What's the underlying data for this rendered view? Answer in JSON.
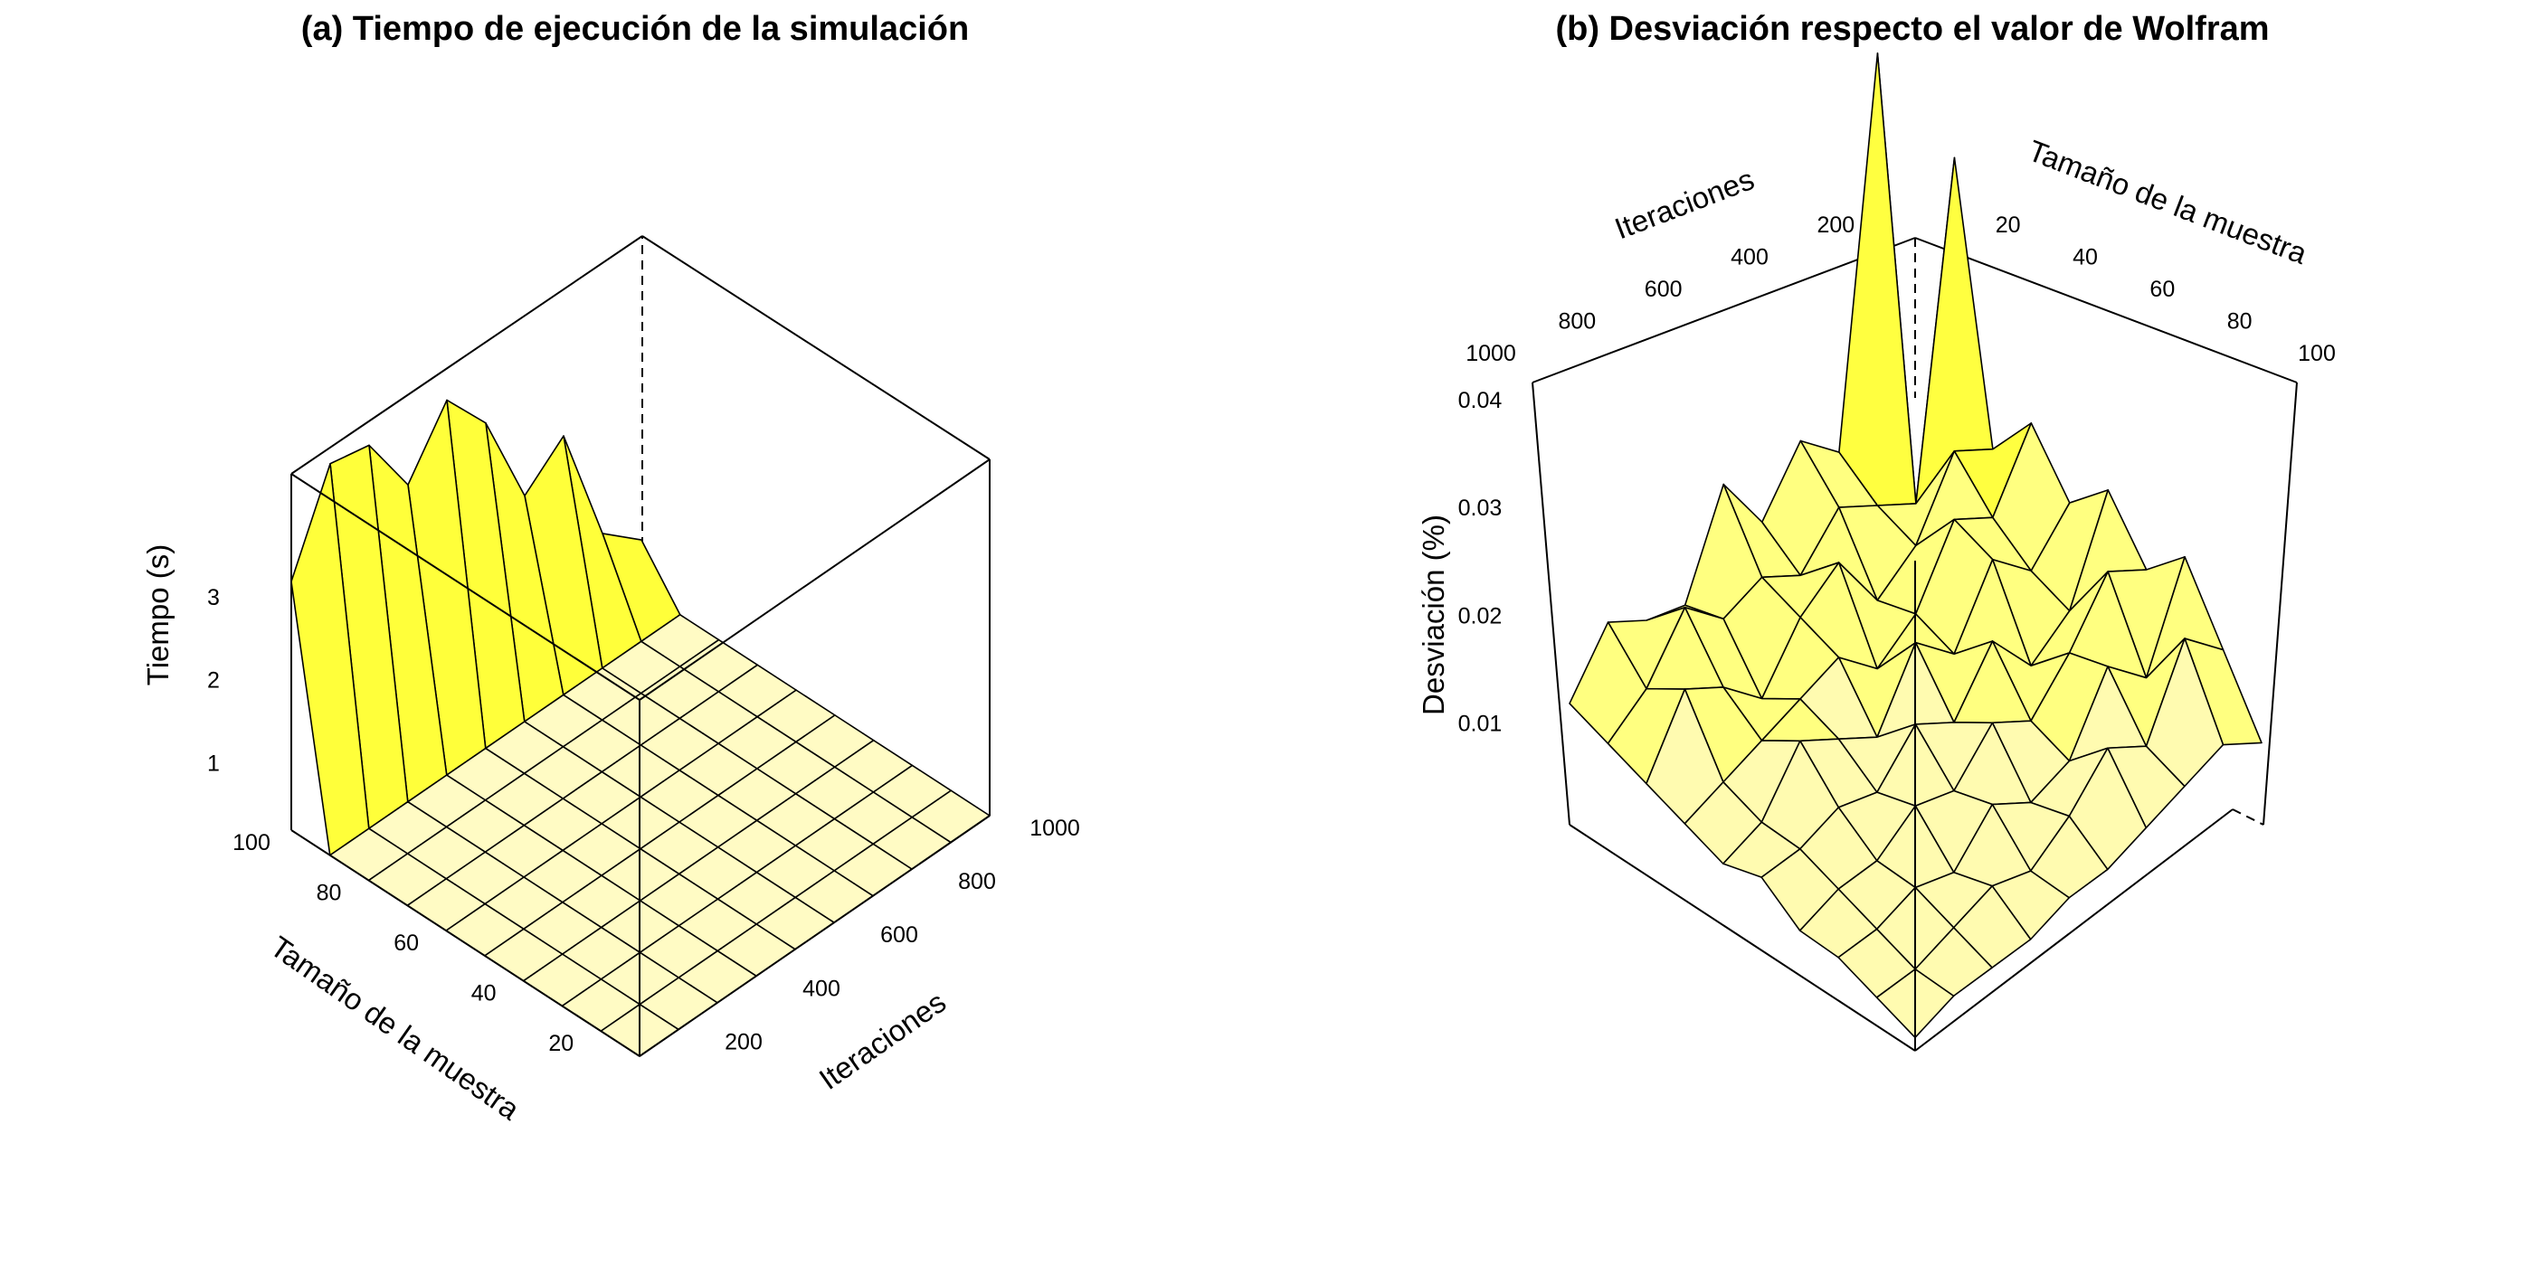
{
  "chart_data": [
    {
      "type": "surface3d",
      "title": "(a) Tiempo de ejecución de la simulación",
      "xlabel": "Tamaño de la muestra",
      "ylabel": "Iteraciones",
      "zlabel": "Tiempo (s)",
      "x_ticks": [
        "20",
        "40",
        "60",
        "80",
        "100"
      ],
      "y_ticks": [
        "200",
        "400",
        "600",
        "800",
        "1000"
      ],
      "z_ticks": [
        "1",
        "2",
        "3"
      ],
      "x_range": [
        10,
        100
      ],
      "y_range": [
        100,
        1000
      ],
      "z_range": [
        0,
        4.3
      ],
      "x": [
        10,
        20,
        30,
        40,
        50,
        60,
        70,
        80,
        90,
        100
      ],
      "y": [
        100,
        200,
        300,
        400,
        500,
        600,
        700,
        800,
        900,
        1000
      ],
      "z_note": "rows indexed by sample size (x), columns by iterations (y)",
      "z": [
        [
          3.0,
          4.1,
          4.0,
          3.2,
          3.9,
          3.3,
          2.1,
          2.5,
          1.0,
          0.6
        ],
        [
          0,
          0,
          0,
          0,
          0,
          0,
          0,
          0,
          0,
          0
        ],
        [
          0,
          0,
          0,
          0,
          0,
          0,
          0,
          0,
          0,
          0
        ],
        [
          0,
          0,
          0,
          0,
          0,
          0,
          0,
          0,
          0,
          0
        ],
        [
          0,
          0,
          0,
          0,
          0,
          0,
          0,
          0,
          0,
          0
        ],
        [
          0,
          0,
          0,
          0,
          0,
          0,
          0,
          0,
          0,
          0
        ],
        [
          0,
          0,
          0,
          0,
          0,
          0,
          0,
          0,
          0,
          0
        ],
        [
          0,
          0,
          0,
          0,
          0,
          0,
          0,
          0,
          0,
          0
        ],
        [
          0,
          0,
          0,
          0,
          0,
          0,
          0,
          0,
          0,
          0
        ],
        [
          0,
          0,
          0,
          0,
          0,
          0,
          0,
          0,
          0,
          0
        ]
      ],
      "colors": [
        "#fffbc4",
        "#ffff3a",
        "#ffee00",
        "#ffd000",
        "#ffc000"
      ]
    },
    {
      "type": "surface3d",
      "title": "(b) Desviación respecto el valor de Wolfram",
      "xlabel": "Tamaño de la muestra",
      "ylabel": "Iteraciones",
      "zlabel": "Desviación (%)",
      "x_ticks": [
        "20",
        "40",
        "60",
        "80",
        "100"
      ],
      "y_ticks": [
        "200",
        "400",
        "600",
        "800",
        "1000"
      ],
      "z_ticks": [
        "0.01",
        "0.02",
        "0.03",
        "0.04"
      ],
      "x_range": [
        10,
        100
      ],
      "y_range": [
        100,
        1000
      ],
      "z_range": [
        0,
        0.041
      ],
      "x": [
        10,
        20,
        30,
        40,
        50,
        60,
        70,
        80,
        90,
        100
      ],
      "y": [
        100,
        200,
        300,
        400,
        500,
        600,
        700,
        800,
        900,
        1000
      ],
      "z_note": "rows indexed by iterations (y), columns by sample size (x)",
      "z": [
        [
          0.002,
          0.04,
          0.012,
          0.015,
          0.011,
          0.016,
          0.009,
          0.01,
          0.012,
          0.008
        ],
        [
          0.032,
          0.008,
          0.01,
          0.012,
          0.009,
          0.011,
          0.01,
          0.013,
          0.009,
          0.007
        ],
        [
          0.012,
          0.014,
          0.009,
          0.007,
          0.012,
          0.01,
          0.006,
          0.009,
          0.011,
          0.006
        ],
        [
          0.016,
          0.011,
          0.013,
          0.008,
          0.006,
          0.009,
          0.008,
          0.007,
          0.006,
          0.005
        ],
        [
          0.012,
          0.009,
          0.012,
          0.007,
          0.01,
          0.005,
          0.007,
          0.009,
          0.005,
          0.004
        ],
        [
          0.015,
          0.008,
          0.006,
          0.01,
          0.006,
          0.008,
          0.005,
          0.006,
          0.005,
          0.005
        ],
        [
          0.011,
          0.013,
          0.009,
          0.006,
          0.008,
          0.005,
          0.006,
          0.004,
          0.004,
          0.003
        ],
        [
          0.014,
          0.007,
          0.01,
          0.005,
          0.004,
          0.006,
          0.003,
          0.004,
          0.003,
          0.003
        ],
        [
          0.009,
          0.012,
          0.006,
          0.008,
          0.005,
          0.003,
          0.004,
          0.003,
          0.002,
          0.002
        ],
        [
          0.004,
          0.006,
          0.005,
          0.004,
          0.003,
          0.003,
          0.002,
          0.002,
          0.002,
          0.001
        ]
      ],
      "colors": [
        "#fffbb0",
        "#ffff80",
        "#ffff40",
        "#ffff10"
      ]
    }
  ]
}
